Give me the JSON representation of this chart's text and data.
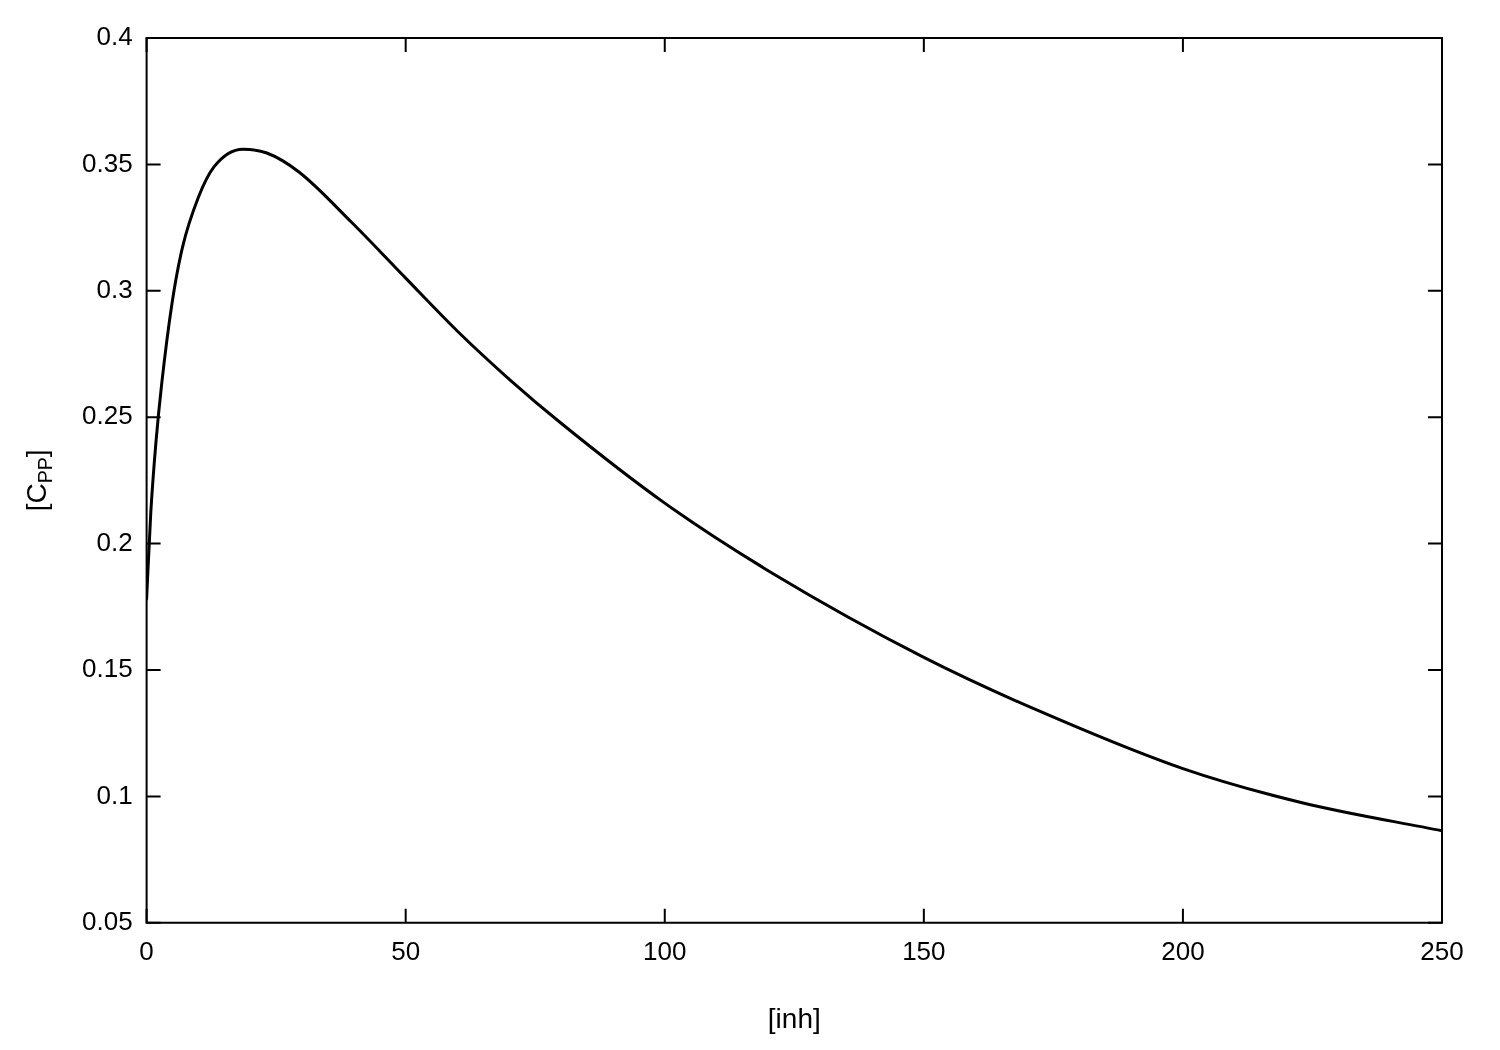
{
  "chart_data": {
    "type": "line",
    "xlabel": "[inh]",
    "ylabel": "[C$_{PP}$]",
    "x": [
      0,
      0.8,
      1.8,
      2.9,
      4.9,
      6.9,
      10,
      13,
      18.6,
      23.2,
      29.4,
      39.6,
      50,
      60,
      70,
      80,
      100,
      121,
      150,
      172,
      200,
      223,
      250
    ],
    "series": [
      {
        "color": "#000000",
        "values": [
          0.178,
          0.212,
          0.24,
          0.263,
          0.295,
          0.317,
          0.337,
          0.349,
          0.356,
          0.3545,
          0.347,
          0.327,
          0.305,
          0.284,
          0.265,
          0.2476,
          0.216,
          0.188,
          0.155,
          0.134,
          0.111,
          0.0975,
          0.0864
        ]
      }
    ],
    "xlim": [
      0,
      250
    ],
    "xticks": [
      0,
      50,
      100,
      150,
      200,
      250
    ],
    "ylim": [
      0.05,
      0.4
    ],
    "yticks": [
      0.05,
      0.1,
      0.15,
      0.2,
      0.25,
      0.3,
      0.35,
      0.4
    ],
    "grid": false,
    "legend": false,
    "marker": "none",
    "line_style": "solid"
  }
}
